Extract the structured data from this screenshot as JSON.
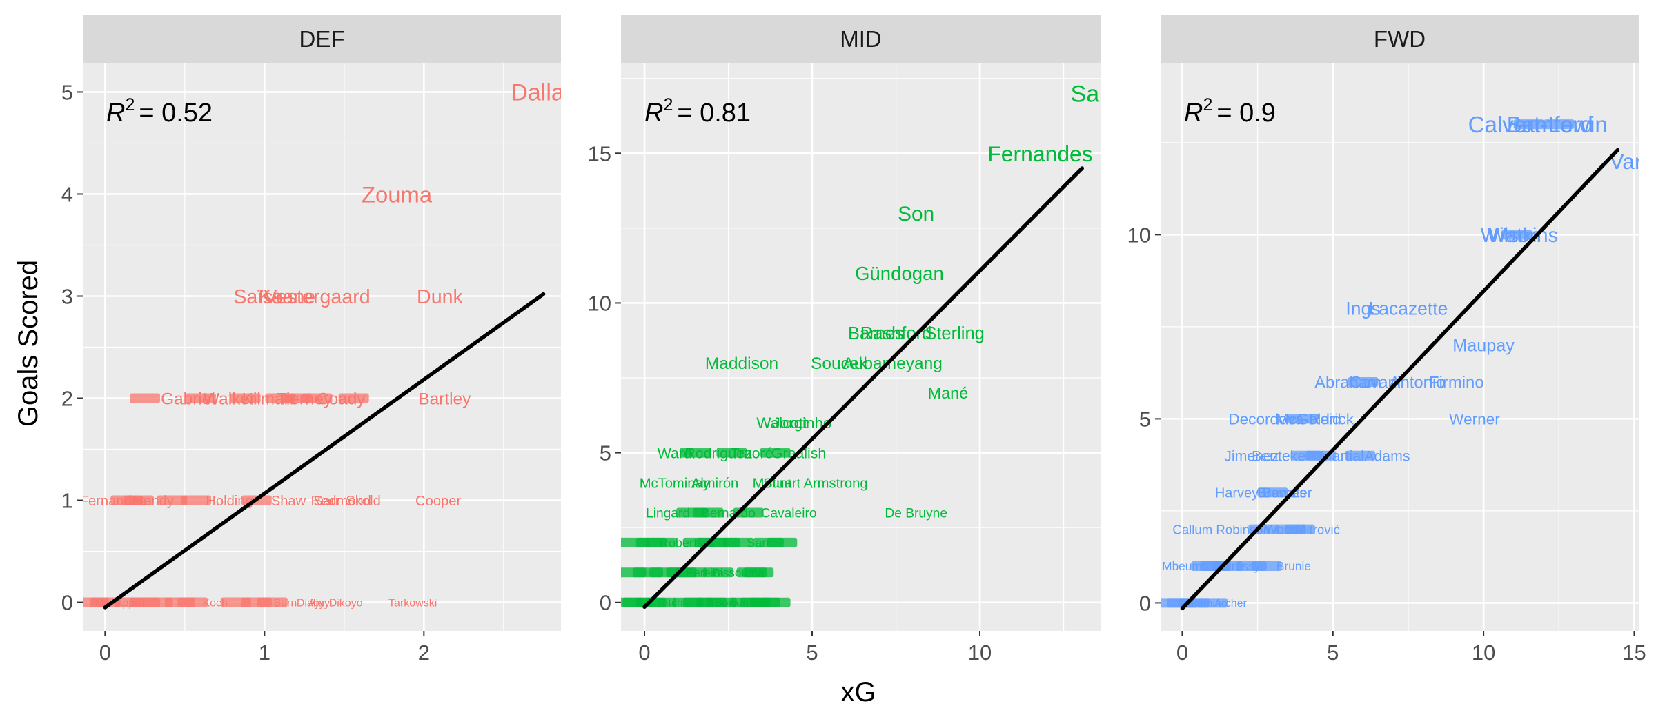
{
  "chart_data": {
    "type": "scatter",
    "xlabel": "xG",
    "ylabel": "Goals Scored",
    "colors": {
      "DEF": "#F8766D",
      "MID": "#00BA38",
      "FWD": "#619CFF",
      "panel_bg": "#EBEBEB",
      "strip_bg": "#D9D9D9",
      "fit_line": "#000000"
    },
    "grid": true,
    "panels": [
      {
        "name": "DEF",
        "r2_label": "= 0.52",
        "xlim": [
          -0.14,
          2.86
        ],
        "ylim": [
          -0.28,
          5.28
        ],
        "xticks": [
          0,
          1,
          2
        ],
        "yticks": [
          0,
          1,
          2,
          3,
          4,
          5
        ],
        "fit": {
          "x": [
            0,
            2.75
          ],
          "y": [
            -0.05,
            3.02
          ]
        },
        "labeled_points": [
          {
            "label": "Dallas",
            "x": 2.75,
            "y": 5
          },
          {
            "label": "Zouma",
            "x": 1.83,
            "y": 4
          },
          {
            "label": "Saïss",
            "x": 0.96,
            "y": 3
          },
          {
            "label": "Keane",
            "x": 1.14,
            "y": 3
          },
          {
            "label": "Vestergaard",
            "x": 1.33,
            "y": 3
          },
          {
            "label": "Dunk",
            "x": 2.1,
            "y": 3
          },
          {
            "label": "Gabriel",
            "x": 0.52,
            "y": 2
          },
          {
            "label": "Walker",
            "x": 0.78,
            "y": 2
          },
          {
            "label": "Kilman",
            "x": 1.02,
            "y": 2
          },
          {
            "label": "Tierney",
            "x": 1.25,
            "y": 2
          },
          {
            "label": "Coady",
            "x": 1.48,
            "y": 2
          },
          {
            "label": "Bartley",
            "x": 2.13,
            "y": 2
          },
          {
            "label": "Fernandes",
            "x": 0.05,
            "y": 1
          },
          {
            "label": "Mendy",
            "x": 0.3,
            "y": 1
          },
          {
            "label": "Holding",
            "x": 0.78,
            "y": 1
          },
          {
            "label": "Shaw",
            "x": 1.15,
            "y": 1
          },
          {
            "label": "Sarr",
            "x": 1.39,
            "y": 1
          },
          {
            "label": "Redmond",
            "x": 1.48,
            "y": 1
          },
          {
            "label": "Skold",
            "x": 1.62,
            "y": 1
          },
          {
            "label": "Cooper",
            "x": 2.09,
            "y": 1
          },
          {
            "label": "Mariappa",
            "x": 0.08,
            "y": 0
          },
          {
            "label": "Koch",
            "x": 0.69,
            "y": 0
          },
          {
            "label": "Burn",
            "x": 1.13,
            "y": 0
          },
          {
            "label": "Diaby",
            "x": 1.29,
            "y": 0
          },
          {
            "label": "Ajayi",
            "x": 1.35,
            "y": 0
          },
          {
            "label": "Dikoyo",
            "x": 1.51,
            "y": 0
          },
          {
            "label": "Tarkowski",
            "x": 1.93,
            "y": 0
          }
        ],
        "other_points": [
          {
            "x": 0.13,
            "y": 1
          },
          {
            "x": 0.21,
            "y": 1
          },
          {
            "x": 0.42,
            "y": 1
          },
          {
            "x": 0.57,
            "y": 1
          },
          {
            "x": 0.95,
            "y": 1
          },
          {
            "x": 0.25,
            "y": 2
          },
          {
            "x": 0.6,
            "y": 2
          },
          {
            "x": 0.88,
            "y": 2
          },
          {
            "x": 1.1,
            "y": 2
          },
          {
            "x": 1.2,
            "y": 2
          },
          {
            "x": 1.33,
            "y": 2
          },
          {
            "x": 1.56,
            "y": 2
          },
          {
            "x": -0.07,
            "y": 0
          },
          {
            "x": 0,
            "y": 0
          },
          {
            "x": 0.15,
            "y": 0
          },
          {
            "x": 0.25,
            "y": 0
          },
          {
            "x": 0.33,
            "y": 0
          },
          {
            "x": 0.47,
            "y": 0
          },
          {
            "x": 0.55,
            "y": 0
          },
          {
            "x": 0.82,
            "y": 0
          },
          {
            "x": 0.95,
            "y": 0
          },
          {
            "x": 1.05,
            "y": 0
          }
        ]
      },
      {
        "name": "MID",
        "r2_label": "= 0.81",
        "xlim": [
          -0.7,
          13.6
        ],
        "ylim": [
          -0.95,
          18.0
        ],
        "xticks": [
          0,
          5,
          10
        ],
        "yticks": [
          0,
          5,
          10,
          15
        ],
        "fit": {
          "x": [
            0,
            13.05
          ],
          "y": [
            -0.15,
            14.5
          ]
        },
        "labeled_points": [
          {
            "label": "Salah",
            "x": 13.6,
            "y": 17
          },
          {
            "label": "Fernandes",
            "x": 11.8,
            "y": 15
          },
          {
            "label": "Son",
            "x": 8.1,
            "y": 13
          },
          {
            "label": "Gündogan",
            "x": 7.6,
            "y": 11
          },
          {
            "label": "Barnes",
            "x": 6.9,
            "y": 9
          },
          {
            "label": "Rashford",
            "x": 7.5,
            "y": 9
          },
          {
            "label": "Sterling",
            "x": 9.25,
            "y": 9
          },
          {
            "label": "Maddison",
            "x": 2.9,
            "y": 8
          },
          {
            "label": "Soucek",
            "x": 5.8,
            "y": 8
          },
          {
            "label": "Aubameyang",
            "x": 7.4,
            "y": 8
          },
          {
            "label": "Mané",
            "x": 9.05,
            "y": 7
          },
          {
            "label": "Walcott",
            "x": 4.1,
            "y": 6
          },
          {
            "label": "Jorginho",
            "x": 4.7,
            "y": 6
          },
          {
            "label": "Ward",
            "x": 0.9,
            "y": 5
          },
          {
            "label": "Rodriguez",
            "x": 2.2,
            "y": 5
          },
          {
            "label": "Traoré",
            "x": 3.2,
            "y": 5
          },
          {
            "label": "Grealish",
            "x": 4.6,
            "y": 5
          },
          {
            "label": "McTominay",
            "x": 0.9,
            "y": 4
          },
          {
            "label": "Almirón",
            "x": 2.1,
            "y": 4
          },
          {
            "label": "Mount",
            "x": 3.8,
            "y": 4
          },
          {
            "label": "Stuart Armstrong",
            "x": 5.1,
            "y": 4
          },
          {
            "label": "Lingard",
            "x": 0.7,
            "y": 3
          },
          {
            "label": "Bernardo",
            "x": 2.5,
            "y": 3
          },
          {
            "label": "Cavaleiro",
            "x": 4.3,
            "y": 3
          },
          {
            "label": "De Bruyne",
            "x": 8.1,
            "y": 3
          },
          {
            "label": "Roberts",
            "x": 1.1,
            "y": 2
          },
          {
            "label": "Sarr",
            "x": 3.4,
            "y": 2
          },
          {
            "label": "Pereira",
            "x": 1.8,
            "y": 1
          },
          {
            "label": "Bissouma",
            "x": 2.8,
            "y": 1
          },
          {
            "label": "Ritchie",
            "x": 0.9,
            "y": 0
          },
          {
            "label": "Bowen",
            "x": 2.6,
            "y": 0
          }
        ],
        "other_points": [
          {
            "x": 1.5,
            "y": 5
          },
          {
            "x": 2.6,
            "y": 5
          },
          {
            "x": 3.9,
            "y": 5
          },
          {
            "x": 1.4,
            "y": 3
          },
          {
            "x": 1.9,
            "y": 3
          },
          {
            "x": 3.1,
            "y": 3
          },
          {
            "x": -0.3,
            "y": 2
          },
          {
            "x": 0.2,
            "y": 2
          },
          {
            "x": 0.5,
            "y": 2
          },
          {
            "x": 1.6,
            "y": 2
          },
          {
            "x": 2.0,
            "y": 2
          },
          {
            "x": 2.4,
            "y": 2
          },
          {
            "x": 2.8,
            "y": 2
          },
          {
            "x": 3.7,
            "y": 2
          },
          {
            "x": 4.1,
            "y": 2
          },
          {
            "x": -0.4,
            "y": 1
          },
          {
            "x": 0.1,
            "y": 1
          },
          {
            "x": 0.6,
            "y": 1
          },
          {
            "x": 1.1,
            "y": 1
          },
          {
            "x": 1.4,
            "y": 1
          },
          {
            "x": 2.2,
            "y": 1
          },
          {
            "x": 3.2,
            "y": 1
          },
          {
            "x": 3.4,
            "y": 1
          },
          {
            "x": -0.5,
            "y": 0
          },
          {
            "x": -0.2,
            "y": 0
          },
          {
            "x": 0.2,
            "y": 0
          },
          {
            "x": 0.5,
            "y": 0
          },
          {
            "x": 1.3,
            "y": 0
          },
          {
            "x": 1.6,
            "y": 0
          },
          {
            "x": 2.0,
            "y": 0
          },
          {
            "x": 2.3,
            "y": 0
          },
          {
            "x": 3.0,
            "y": 0
          },
          {
            "x": 3.3,
            "y": 0
          },
          {
            "x": 3.6,
            "y": 0
          },
          {
            "x": 3.9,
            "y": 0
          }
        ]
      },
      {
        "name": "FWD",
        "r2_label": "= 0.9",
        "xlim": [
          -0.72,
          15.15
        ],
        "ylim": [
          -0.76,
          14.65
        ],
        "xticks": [
          0,
          5,
          10,
          15
        ],
        "yticks": [
          0,
          5,
          10
        ],
        "fit": {
          "x": [
            0,
            14.45
          ],
          "y": [
            -0.15,
            12.3
          ]
        },
        "labeled_points": [
          {
            "label": "Calvert-Lewin",
            "x": 11.8,
            "y": 13
          },
          {
            "label": "Bamford",
            "x": 12.2,
            "y": 13
          },
          {
            "label": "Vardy",
            "x": 15.1,
            "y": 12
          },
          {
            "label": "Watkins",
            "x": 11.3,
            "y": 10
          },
          {
            "label": "Wilson",
            "x": 10.9,
            "y": 10
          },
          {
            "label": "Ings",
            "x": 6.0,
            "y": 8
          },
          {
            "label": "Lacazette",
            "x": 7.5,
            "y": 8
          },
          {
            "label": "Maupay",
            "x": 10.0,
            "y": 7
          },
          {
            "label": "Abraham",
            "x": 5.5,
            "y": 6
          },
          {
            "label": "Cavani",
            "x": 6.4,
            "y": 6
          },
          {
            "label": "Antonio",
            "x": 7.8,
            "y": 6
          },
          {
            "label": "Firmino",
            "x": 9.1,
            "y": 6
          },
          {
            "label": "Werner",
            "x": 9.7,
            "y": 5
          },
          {
            "label": "Decordova-Reid",
            "x": 3.4,
            "y": 5
          },
          {
            "label": "McGoldrick",
            "x": 4.4,
            "y": 5
          },
          {
            "label": "Jimenez",
            "x": 2.3,
            "y": 4
          },
          {
            "label": "Benteke",
            "x": 3.2,
            "y": 4
          },
          {
            "label": "Martial",
            "x": 5.3,
            "y": 4
          },
          {
            "label": "Adams",
            "x": 6.8,
            "y": 4
          },
          {
            "label": "Harvey Barnes",
            "x": 2.6,
            "y": 3
          },
          {
            "label": "Brewster",
            "x": 3.4,
            "y": 3
          },
          {
            "label": "Callum Robinson",
            "x": 1.3,
            "y": 2
          },
          {
            "label": "Wood",
            "x": 3.3,
            "y": 2
          },
          {
            "label": "Mitrović",
            "x": 4.5,
            "y": 2
          },
          {
            "label": "Mbeumo",
            "x": 0.1,
            "y": 1
          },
          {
            "label": "Guirassy",
            "x": 1.8,
            "y": 1
          },
          {
            "label": "Brunie",
            "x": 3.7,
            "y": 1
          },
          {
            "label": "Minamino",
            "x": 0.7,
            "y": 0
          },
          {
            "label": "Archer",
            "x": 1.6,
            "y": 0
          }
        ],
        "other_points": [
          {
            "x": 11.5,
            "y": 13
          },
          {
            "x": 12.5,
            "y": 13
          },
          {
            "x": 11.1,
            "y": 10
          },
          {
            "x": 6.0,
            "y": 6
          },
          {
            "x": 4.0,
            "y": 5
          },
          {
            "x": 4.1,
            "y": 4
          },
          {
            "x": 4.6,
            "y": 4
          },
          {
            "x": 5.9,
            "y": 4
          },
          {
            "x": 3.0,
            "y": 3
          },
          {
            "x": 2.7,
            "y": 2
          },
          {
            "x": 3.6,
            "y": 2
          },
          {
            "x": 3.9,
            "y": 2
          },
          {
            "x": 0.8,
            "y": 1
          },
          {
            "x": 1.1,
            "y": 1
          },
          {
            "x": 1.5,
            "y": 1
          },
          {
            "x": 2.3,
            "y": 1
          },
          {
            "x": 2.8,
            "y": 1
          },
          {
            "x": -0.4,
            "y": 0
          },
          {
            "x": 0,
            "y": 0
          },
          {
            "x": 0.4,
            "y": 0
          },
          {
            "x": 1.0,
            "y": 0
          }
        ]
      }
    ]
  }
}
